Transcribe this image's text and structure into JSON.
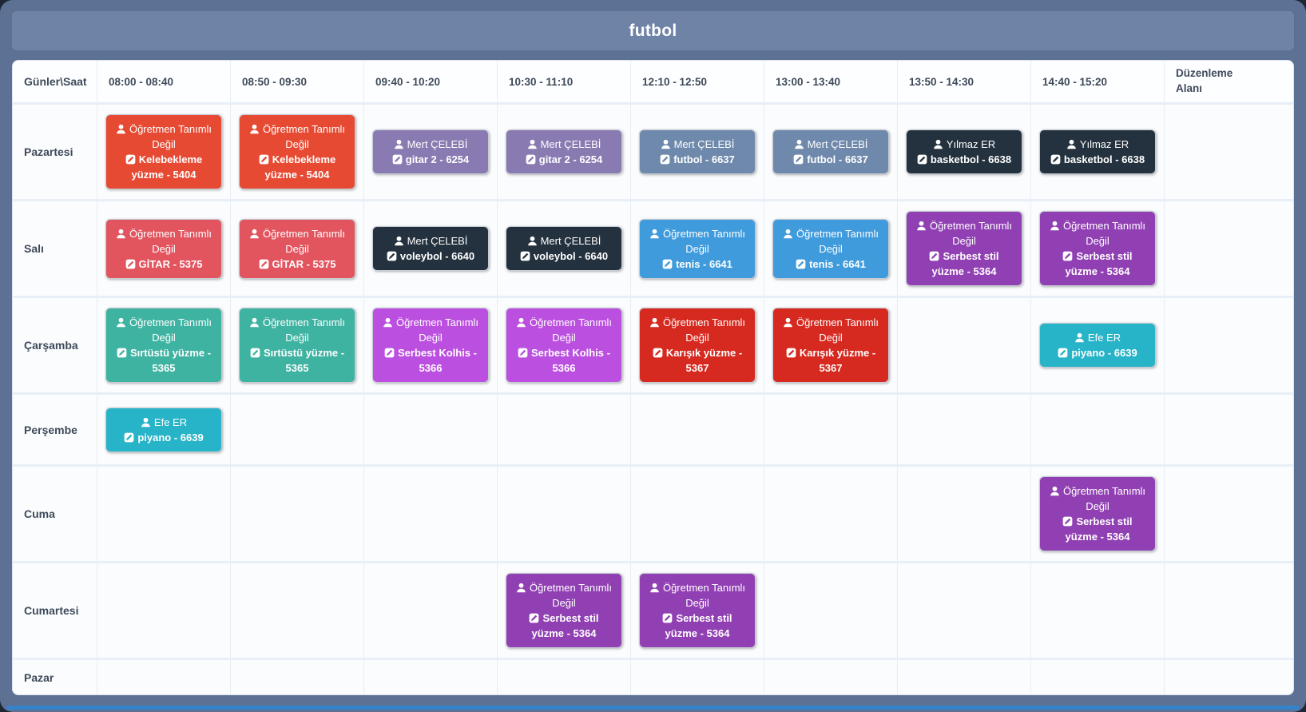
{
  "window": {
    "title": "futbol"
  },
  "colors": {
    "window_background": "#5d7194",
    "title_bar": "#6e83a6",
    "bottom_accent": "#3583cc"
  },
  "grid": {
    "corner_header": "Günler\\Saat",
    "time_headers": [
      "08:00 - 08:40",
      "08:50 - 09:30",
      "09:40 - 10:20",
      "10:30 - 11:10",
      "12:10 - 12:50",
      "13:00 - 13:40",
      "13:50 - 14:30",
      "14:40 - 15:20"
    ],
    "edit_area_header": "Düzenleme Alanı",
    "rows": [
      {
        "day": "Pazartesi",
        "cards": [
          {
            "slot": 0,
            "teacher": "Öğretmen Tanımlı Değil",
            "lesson": "Kelebekleme yüzme - 5404",
            "color": "#e74a33"
          },
          {
            "slot": 1,
            "teacher": "Öğretmen Tanımlı Değil",
            "lesson": "Kelebekleme yüzme - 5404",
            "color": "#e74a33"
          },
          {
            "slot": 2,
            "teacher": "Mert ÇELEBİ",
            "lesson": "gitar 2 - 6254",
            "color": "#8a7ab2"
          },
          {
            "slot": 3,
            "teacher": "Mert ÇELEBİ",
            "lesson": "gitar 2 - 6254",
            "color": "#8a7ab2"
          },
          {
            "slot": 4,
            "teacher": "Mert ÇELEBİ",
            "lesson": "futbol - 6637",
            "color": "#6e89ab"
          },
          {
            "slot": 5,
            "teacher": "Mert ÇELEBİ",
            "lesson": "futbol - 6637",
            "color": "#6e89ab"
          },
          {
            "slot": 6,
            "teacher": "Yılmaz ER",
            "lesson": "basketbol - 6638",
            "color": "#24323f"
          },
          {
            "slot": 7,
            "teacher": "Yılmaz ER",
            "lesson": "basketbol - 6638",
            "color": "#24323f"
          }
        ]
      },
      {
        "day": "Salı",
        "cards": [
          {
            "slot": 0,
            "teacher": "Öğretmen Tanımlı Değil",
            "lesson": "GİTAR - 5375",
            "color": "#e2555f"
          },
          {
            "slot": 1,
            "teacher": "Öğretmen Tanımlı Değil",
            "lesson": "GİTAR - 5375",
            "color": "#e2555f"
          },
          {
            "slot": 2,
            "teacher": "Mert ÇELEBİ",
            "lesson": "voleybol - 6640",
            "color": "#24323f"
          },
          {
            "slot": 3,
            "teacher": "Mert ÇELEBİ",
            "lesson": "voleybol - 6640",
            "color": "#24323f"
          },
          {
            "slot": 4,
            "teacher": "Öğretmen Tanımlı Değil",
            "lesson": "tenis - 6641",
            "color": "#3f9bdc"
          },
          {
            "slot": 5,
            "teacher": "Öğretmen Tanımlı Değil",
            "lesson": "tenis - 6641",
            "color": "#3f9bdc"
          },
          {
            "slot": 6,
            "teacher": "Öğretmen Tanımlı Değil",
            "lesson": "Serbest stil yüzme - 5364",
            "color": "#9140b3"
          },
          {
            "slot": 7,
            "teacher": "Öğretmen Tanımlı Değil",
            "lesson": "Serbest stil yüzme - 5364",
            "color": "#9140b3"
          }
        ]
      },
      {
        "day": "Çarşamba",
        "cards": [
          {
            "slot": 0,
            "teacher": "Öğretmen Tanımlı Değil",
            "lesson": "Sırtüstü yüzme - 5365",
            "color": "#3fb3a2"
          },
          {
            "slot": 1,
            "teacher": "Öğretmen Tanımlı Değil",
            "lesson": "Sırtüstü yüzme - 5365",
            "color": "#3fb3a2"
          },
          {
            "slot": 2,
            "teacher": "Öğretmen Tanımlı Değil",
            "lesson": "Serbest Kolhis - 5366",
            "color": "#bb4fe0"
          },
          {
            "slot": 3,
            "teacher": "Öğretmen Tanımlı Değil",
            "lesson": "Serbest Kolhis - 5366",
            "color": "#bb4fe0"
          },
          {
            "slot": 4,
            "teacher": "Öğretmen Tanımlı Değil",
            "lesson": "Karışık yüzme - 5367",
            "color": "#d6291f"
          },
          {
            "slot": 5,
            "teacher": "Öğretmen Tanımlı Değil",
            "lesson": "Karışık yüzme - 5367",
            "color": "#d6291f"
          },
          {
            "slot": 7,
            "teacher": "Efe ER",
            "lesson": "piyano - 6639",
            "color": "#28b4c8"
          }
        ]
      },
      {
        "day": "Perşembe",
        "cards": [
          {
            "slot": 0,
            "teacher": "Efe ER",
            "lesson": "piyano - 6639",
            "color": "#28b4c8"
          }
        ]
      },
      {
        "day": "Cuma",
        "cards": [
          {
            "slot": 7,
            "teacher": "Öğretmen Tanımlı Değil",
            "lesson": "Serbest stil yüzme - 5364",
            "color": "#9140b3"
          }
        ]
      },
      {
        "day": "Cumartesi",
        "cards": [
          {
            "slot": 3,
            "teacher": "Öğretmen Tanımlı Değil",
            "lesson": "Serbest stil yüzme - 5364",
            "color": "#9140b3"
          },
          {
            "slot": 4,
            "teacher": "Öğretmen Tanımlı Değil",
            "lesson": "Serbest stil yüzme - 5364",
            "color": "#9140b3"
          }
        ]
      },
      {
        "day": "Pazar",
        "cards": []
      }
    ]
  }
}
